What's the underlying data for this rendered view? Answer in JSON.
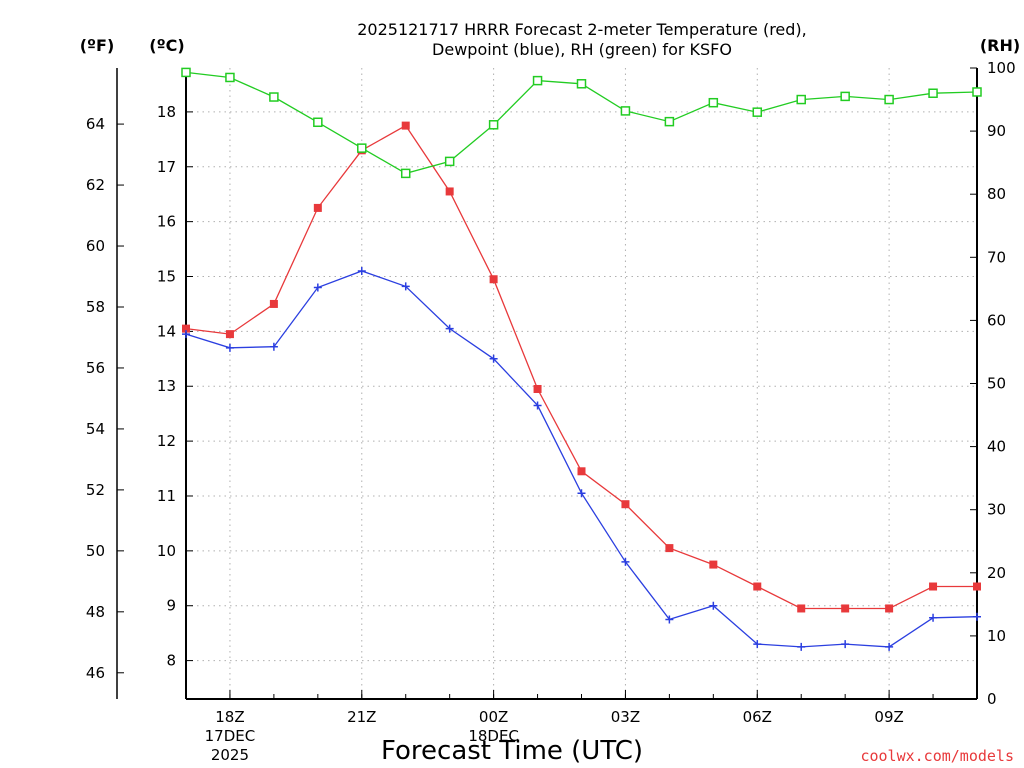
{
  "chart_data": {
    "type": "line",
    "title_line1": "2025121717 HRRR Forecast 2-meter Temperature (red),",
    "title_line2": "Dewpoint (blue), RH (green) for KSFO",
    "xlabel": "Forecast Time (UTC)",
    "credit": "coolwx.com/models",
    "unit_f": "(ºF)",
    "unit_c": "(ºC)",
    "unit_rh": "(RH)",
    "x_hours": [
      17,
      18,
      19,
      20,
      21,
      22,
      23,
      24,
      25,
      26,
      27,
      28,
      29,
      30,
      31,
      32,
      33,
      34,
      35
    ],
    "x_ticks": [
      {
        "hour": 18,
        "label": "18Z",
        "date": "17DEC",
        "year": "2025"
      },
      {
        "hour": 21,
        "label": "21Z",
        "date": "",
        "year": ""
      },
      {
        "hour": 24,
        "label": "00Z",
        "date": "18DEC",
        "year": ""
      },
      {
        "hour": 27,
        "label": "03Z",
        "date": "",
        "year": ""
      },
      {
        "hour": 30,
        "label": "06Z",
        "date": "",
        "year": ""
      },
      {
        "hour": 33,
        "label": "09Z",
        "date": "",
        "year": ""
      }
    ],
    "xlim": [
      17,
      35
    ],
    "ylim_c": [
      7.3,
      18.8
    ],
    "ylim_rh": [
      0,
      100
    ],
    "yticks_c": [
      8,
      9,
      10,
      11,
      12,
      13,
      14,
      15,
      16,
      17,
      18
    ],
    "yticks_f": [
      46,
      48,
      50,
      52,
      54,
      56,
      58,
      60,
      62,
      64
    ],
    "yticks_rh": [
      0,
      10,
      20,
      30,
      40,
      50,
      60,
      70,
      80,
      90,
      100
    ],
    "series": [
      {
        "name": "Temperature",
        "unit": "C",
        "color": "#e8393b",
        "marker": "filled-square",
        "values": [
          14.05,
          13.95,
          14.5,
          16.25,
          17.3,
          17.75,
          16.55,
          14.95,
          12.95,
          11.45,
          10.85,
          10.05,
          9.75,
          9.35,
          8.95,
          8.95,
          8.95,
          9.35,
          9.35
        ]
      },
      {
        "name": "Dewpoint",
        "unit": "C",
        "color": "#2b3fe0",
        "marker": "plus",
        "values": [
          13.95,
          13.7,
          13.72,
          14.8,
          15.1,
          14.82,
          14.05,
          13.5,
          12.65,
          11.05,
          9.8,
          8.75,
          9.0,
          8.3,
          8.25,
          8.3,
          8.25,
          8.78,
          8.8
        ]
      },
      {
        "name": "RH",
        "unit": "%",
        "color": "#22cc22",
        "marker": "open-square",
        "values": [
          99.3,
          98.5,
          95.4,
          91.4,
          87.3,
          83.3,
          85.2,
          91.0,
          98.0,
          97.5,
          93.2,
          91.5,
          94.5,
          93.0,
          95.0,
          95.5,
          95.0,
          96.0,
          96.2
        ]
      }
    ]
  }
}
